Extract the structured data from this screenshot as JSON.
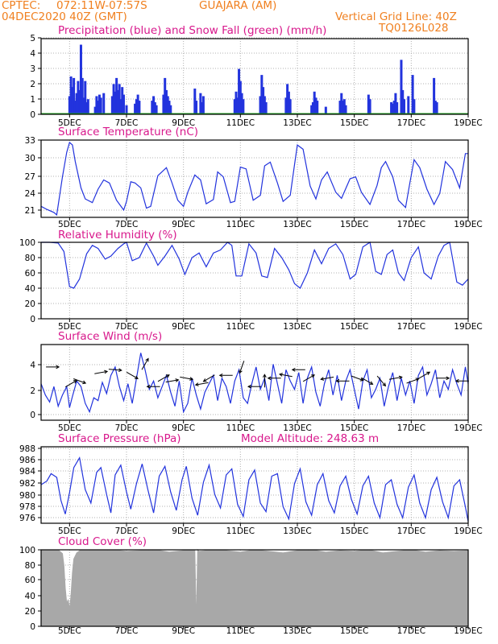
{
  "header": {
    "source": "CPTEC:",
    "coords": "072:11W-07:57S",
    "station": "GUAJARA (AM)",
    "run_date": "04DEC2020 40Z (GMT)",
    "grid_note": "Vertical Grid Line: 40Z",
    "code": "TQ0126L028"
  },
  "colors": {
    "header": "#f08020",
    "title": "#d8188c",
    "line": "#2233dd",
    "snow": "#22aa22",
    "cloud": "#a8a8a8",
    "grid": "#b0b0b0"
  },
  "x_ticks": [
    "5DEC",
    "7DEC",
    "9DEC",
    "11DEC",
    "13DEC",
    "15DEC",
    "17DEC",
    "19DEC"
  ],
  "chart_data": [
    {
      "id": "precip",
      "type": "bar",
      "title": "Precipitation (blue) and Snow Fall (green) (mm/h)",
      "ylim": [
        0,
        5
      ],
      "yticks": [
        "0",
        "1",
        "2",
        "3",
        "4",
        "5"
      ],
      "x_range_days": [
        4.0,
        19.0
      ],
      "points": [
        [
          5.0,
          1.2
        ],
        [
          5.05,
          2.5
        ],
        [
          5.1,
          1.8
        ],
        [
          5.15,
          2.4
        ],
        [
          5.2,
          0.9
        ],
        [
          5.25,
          1.4
        ],
        [
          5.3,
          2.2
        ],
        [
          5.35,
          1.6
        ],
        [
          5.4,
          4.6
        ],
        [
          5.45,
          2.4
        ],
        [
          5.5,
          1.1
        ],
        [
          5.55,
          2.2
        ],
        [
          5.6,
          0.8
        ],
        [
          5.65,
          1.0
        ],
        [
          5.9,
          0.5
        ],
        [
          5.95,
          1.2
        ],
        [
          6.0,
          0.9
        ],
        [
          6.05,
          1.3
        ],
        [
          6.1,
          1.1
        ],
        [
          6.2,
          1.4
        ],
        [
          6.5,
          1.2
        ],
        [
          6.55,
          2.0
        ],
        [
          6.6,
          1.5
        ],
        [
          6.65,
          2.4
        ],
        [
          6.7,
          1.6
        ],
        [
          6.75,
          2.0
        ],
        [
          6.8,
          1.0
        ],
        [
          6.85,
          1.8
        ],
        [
          6.9,
          1.3
        ],
        [
          7.0,
          0.6
        ],
        [
          7.3,
          0.7
        ],
        [
          7.35,
          1.0
        ],
        [
          7.4,
          1.3
        ],
        [
          7.45,
          0.9
        ],
        [
          7.9,
          0.9
        ],
        [
          7.95,
          1.2
        ],
        [
          8.0,
          0.8
        ],
        [
          8.05,
          0.6
        ],
        [
          8.3,
          1.3
        ],
        [
          8.35,
          2.4
        ],
        [
          8.4,
          1.6
        ],
        [
          8.45,
          1.2
        ],
        [
          8.5,
          0.9
        ],
        [
          8.55,
          0.6
        ],
        [
          9.4,
          1.7
        ],
        [
          9.45,
          0.9
        ],
        [
          9.6,
          1.4
        ],
        [
          9.65,
          0.8
        ],
        [
          9.7,
          1.2
        ],
        [
          10.8,
          1.0
        ],
        [
          10.85,
          1.5
        ],
        [
          10.9,
          1.1
        ],
        [
          10.95,
          3.0
        ],
        [
          11.0,
          2.2
        ],
        [
          11.05,
          1.4
        ],
        [
          11.1,
          1.0
        ],
        [
          11.7,
          1.2
        ],
        [
          11.75,
          2.6
        ],
        [
          11.8,
          1.8
        ],
        [
          11.85,
          1.2
        ],
        [
          11.9,
          0.8
        ],
        [
          12.6,
          1.1
        ],
        [
          12.65,
          2.0
        ],
        [
          12.7,
          1.5
        ],
        [
          12.75,
          1.0
        ],
        [
          13.5,
          0.6
        ],
        [
          13.55,
          0.8
        ],
        [
          13.6,
          1.5
        ],
        [
          13.65,
          1.1
        ],
        [
          13.7,
          0.9
        ],
        [
          14.0,
          0.5
        ],
        [
          14.5,
          0.9
        ],
        [
          14.55,
          1.4
        ],
        [
          14.6,
          0.9
        ],
        [
          14.65,
          1.0
        ],
        [
          14.7,
          0.6
        ],
        [
          15.5,
          1.3
        ],
        [
          15.55,
          1.0
        ],
        [
          16.3,
          0.8
        ],
        [
          16.35,
          0.7
        ],
        [
          16.4,
          0.9
        ],
        [
          16.45,
          1.4
        ],
        [
          16.5,
          0.8
        ],
        [
          16.65,
          3.6
        ],
        [
          16.7,
          1.6
        ],
        [
          16.75,
          1.0
        ],
        [
          16.9,
          1.2
        ],
        [
          17.05,
          2.6
        ],
        [
          17.1,
          1.0
        ],
        [
          17.8,
          2.4
        ],
        [
          17.85,
          0.9
        ],
        [
          17.9,
          0.8
        ]
      ],
      "snow": 0
    },
    {
      "id": "temperature",
      "type": "line",
      "title": "Surface Temperature (nC)",
      "ylim": [
        20.4,
        33
      ],
      "yticks": [
        "21",
        "24",
        "27",
        "30",
        "33"
      ],
      "x_range_days": [
        4.0,
        19.0
      ],
      "x": [
        4.0,
        4.2,
        4.45,
        4.55,
        4.75,
        4.9,
        5.0,
        5.1,
        5.2,
        5.4,
        5.55,
        5.8,
        6.0,
        6.2,
        6.4,
        6.65,
        6.9,
        7.0,
        7.15,
        7.3,
        7.5,
        7.7,
        7.85,
        8.1,
        8.4,
        8.6,
        8.8,
        9.0,
        9.15,
        9.4,
        9.6,
        9.8,
        10.05,
        10.2,
        10.4,
        10.65,
        10.8,
        11.0,
        11.2,
        11.45,
        11.7,
        11.85,
        12.05,
        12.3,
        12.5,
        12.75,
        12.9,
        13.0,
        13.2,
        13.45,
        13.65,
        13.85,
        14.05,
        14.35,
        14.55,
        14.85,
        15.05,
        15.25,
        15.55,
        15.8,
        15.95,
        16.1,
        16.35,
        16.55,
        16.8,
        16.95,
        17.1,
        17.3,
        17.55,
        17.8,
        18.0,
        18.2,
        18.45,
        18.7,
        18.9,
        19.0
      ],
      "y": [
        22.2,
        21.7,
        21.2,
        20.8,
        27.0,
        31.0,
        32.6,
        32.2,
        29.5,
        25.2,
        23.4,
        22.8,
        25.0,
        26.5,
        26.0,
        23.2,
        21.6,
        23.0,
        26.2,
        26.0,
        25.2,
        21.9,
        22.2,
        27.2,
        28.5,
        26.0,
        23.2,
        22.2,
        24.5,
        27.3,
        26.5,
        22.6,
        23.3,
        27.8,
        27.0,
        22.8,
        23.0,
        28.6,
        28.3,
        23.2,
        24.0,
        28.8,
        29.4,
        26.0,
        23.0,
        24.0,
        29.0,
        32.2,
        31.5,
        25.5,
        23.4,
        26.5,
        27.8,
        24.5,
        23.5,
        26.7,
        27.0,
        24.5,
        22.5,
        25.6,
        28.5,
        29.5,
        27.0,
        23.2,
        22.0,
        26.0,
        29.8,
        28.5,
        25.0,
        22.5,
        24.3,
        29.5,
        28.2,
        25.2,
        30.8,
        30.8
      ]
    },
    {
      "id": "humidity",
      "type": "line",
      "title": "Relative Humidity (%)",
      "ylim": [
        0,
        100
      ],
      "yticks": [
        "0",
        "20",
        "40",
        "60",
        "80",
        "100"
      ],
      "x_range_days": [
        4.0,
        19.0
      ],
      "x": [
        4.0,
        4.3,
        4.6,
        4.8,
        5.0,
        5.15,
        5.35,
        5.6,
        5.8,
        6.0,
        6.25,
        6.45,
        6.7,
        6.9,
        7.0,
        7.2,
        7.45,
        7.7,
        7.95,
        8.1,
        8.35,
        8.6,
        8.85,
        9.05,
        9.3,
        9.55,
        9.8,
        10.05,
        10.3,
        10.55,
        10.7,
        10.85,
        11.05,
        11.3,
        11.55,
        11.75,
        11.95,
        12.2,
        12.45,
        12.7,
        12.9,
        13.1,
        13.35,
        13.6,
        13.85,
        14.1,
        14.35,
        14.6,
        14.85,
        15.05,
        15.3,
        15.55,
        15.75,
        15.95,
        16.15,
        16.35,
        16.55,
        16.75,
        17.0,
        17.25,
        17.45,
        17.7,
        17.95,
        18.15,
        18.35,
        18.6,
        18.8,
        19.0
      ],
      "y": [
        100,
        100,
        99,
        88,
        42,
        40,
        52,
        85,
        96,
        92,
        78,
        82,
        92,
        98,
        100,
        76,
        80,
        99,
        82,
        70,
        82,
        96,
        78,
        58,
        80,
        86,
        68,
        86,
        90,
        100,
        96,
        56,
        56,
        98,
        86,
        56,
        54,
        92,
        80,
        64,
        46,
        40,
        60,
        90,
        72,
        92,
        98,
        84,
        52,
        58,
        94,
        100,
        62,
        58,
        84,
        90,
        60,
        50,
        80,
        94,
        60,
        52,
        82,
        96,
        100,
        48,
        44,
        52
      ]
    },
    {
      "id": "wind",
      "type": "line",
      "title": "Surface Wind (m/s)",
      "ylim": [
        -0.4,
        5
      ],
      "yticks": [
        "0",
        "2",
        "4"
      ],
      "x_range_days": [
        4.0,
        19.0
      ],
      "x": [
        4.0,
        4.15,
        4.3,
        4.45,
        4.6,
        4.75,
        4.9,
        5.0,
        5.1,
        5.25,
        5.4,
        5.55,
        5.7,
        5.85,
        6.0,
        6.15,
        6.3,
        6.45,
        6.6,
        6.75,
        6.9,
        7.05,
        7.2,
        7.35,
        7.5,
        7.65,
        7.8,
        7.95,
        8.1,
        8.25,
        8.4,
        8.55,
        8.7,
        8.85,
        9.0,
        9.15,
        9.3,
        9.45,
        9.6,
        9.75,
        9.9,
        10.05,
        10.2,
        10.35,
        10.5,
        10.65,
        10.8,
        10.95,
        11.1,
        11.25,
        11.4,
        11.55,
        11.7,
        11.85,
        12.0,
        12.15,
        12.3,
        12.45,
        12.6,
        12.75,
        12.9,
        13.05,
        13.2,
        13.35,
        13.5,
        13.65,
        13.8,
        13.95,
        14.1,
        14.25,
        14.4,
        14.55,
        14.7,
        14.85,
        15.0,
        15.15,
        15.3,
        15.45,
        15.6,
        15.75,
        15.9,
        16.05,
        16.2,
        16.35,
        16.5,
        16.65,
        16.8,
        16.95,
        17.1,
        17.25,
        17.4,
        17.55,
        17.7,
        17.85,
        18.0,
        18.15,
        18.3,
        18.45,
        18.6,
        18.75,
        18.9,
        19.0
      ],
      "y": [
        2.2,
        1.4,
        0.9,
        2.0,
        0.6,
        1.4,
        2.0,
        0.5,
        1.3,
        2.4,
        2.0,
        0.8,
        0.2,
        1.2,
        1.0,
        2.3,
        1.5,
        2.8,
        3.4,
        2.0,
        1.0,
        2.2,
        0.8,
        2.6,
        4.4,
        3.2,
        1.8,
        2.4,
        1.2,
        2.0,
        2.8,
        1.6,
        0.6,
        2.4,
        0.2,
        0.8,
        2.6,
        1.4,
        0.4,
        1.6,
        2.2,
        2.8,
        1.0,
        2.6,
        2.0,
        0.8,
        2.4,
        3.2,
        1.2,
        0.8,
        2.2,
        3.4,
        1.8,
        2.6,
        1.0,
        3.6,
        2.2,
        0.8,
        3.2,
        2.4,
        1.8,
        3.0,
        0.8,
        2.6,
        3.4,
        1.6,
        0.6,
        2.2,
        3.2,
        1.4,
        2.8,
        1.0,
        2.4,
        3.2,
        1.8,
        0.4,
        2.4,
        3.2,
        1.2,
        1.8,
        2.6,
        0.6,
        2.0,
        3.0,
        1.0,
        2.6,
        1.4,
        2.4,
        0.8,
        2.8,
        3.4,
        1.4,
        2.2,
        3.2,
        1.2,
        2.4,
        1.8,
        3.2,
        2.2,
        1.4,
        3.4,
        2.2
      ]
    },
    {
      "id": "pressure",
      "type": "line",
      "title": "Surface Pressure (hPa)",
      "subtitle": "Model Altitude: 248.63 m",
      "ylim": [
        975.5,
        988
      ],
      "yticks": [
        "976",
        "978",
        "980",
        "982",
        "984",
        "986",
        "988"
      ],
      "x_range_days": [
        4.0,
        19.0
      ],
      "x": [
        4.0,
        4.2,
        4.35,
        4.55,
        4.7,
        4.85,
        5.0,
        5.15,
        5.35,
        5.55,
        5.75,
        5.95,
        6.1,
        6.3,
        6.45,
        6.6,
        6.8,
        7.0,
        7.15,
        7.35,
        7.55,
        7.75,
        7.95,
        8.15,
        8.35,
        8.55,
        8.75,
        8.95,
        9.1,
        9.3,
        9.5,
        9.7,
        9.9,
        10.1,
        10.3,
        10.5,
        10.7,
        10.9,
        11.1,
        11.3,
        11.5,
        11.7,
        11.9,
        12.1,
        12.3,
        12.5,
        12.7,
        12.9,
        13.1,
        13.3,
        13.5,
        13.7,
        13.9,
        14.1,
        14.3,
        14.5,
        14.7,
        14.9,
        15.1,
        15.3,
        15.5,
        15.7,
        15.9,
        16.1,
        16.3,
        16.5,
        16.7,
        16.9,
        17.1,
        17.3,
        17.5,
        17.7,
        17.9,
        18.1,
        18.3,
        18.5,
        18.7,
        18.9,
        19.0
      ],
      "y": [
        981.8,
        982.4,
        983.6,
        983.0,
        979.2,
        977.0,
        980.5,
        984.6,
        986.2,
        981.0,
        978.8,
        983.8,
        984.6,
        980.2,
        977.2,
        983.4,
        985.0,
        980.6,
        977.8,
        982.0,
        985.2,
        981.0,
        977.2,
        983.2,
        984.8,
        980.6,
        977.6,
        982.6,
        984.8,
        979.6,
        976.8,
        982.2,
        985.0,
        980.2,
        978.0,
        983.4,
        984.4,
        978.6,
        976.6,
        982.6,
        984.2,
        978.8,
        977.4,
        983.2,
        983.6,
        978.2,
        976.2,
        982.0,
        984.4,
        979.0,
        976.8,
        981.8,
        983.6,
        979.2,
        977.2,
        981.6,
        983.2,
        979.4,
        977.0,
        981.6,
        983.2,
        978.8,
        976.4,
        981.8,
        982.6,
        978.6,
        976.4,
        981.4,
        983.4,
        978.8,
        976.4,
        981.0,
        983.0,
        979.0,
        976.4,
        981.6,
        982.6,
        978.2,
        975.8
      ]
    },
    {
      "id": "cloud",
      "type": "area",
      "title": "Cloud Cover (%)",
      "ylim": [
        0,
        100
      ],
      "yticks": [
        "0",
        "20",
        "40",
        "60",
        "80",
        "100"
      ],
      "x_range_days": [
        4.0,
        19.0
      ],
      "x": [
        4.0,
        4.6,
        4.75,
        4.8,
        4.85,
        4.9,
        4.95,
        5.0,
        5.05,
        5.1,
        5.15,
        5.25,
        5.4,
        5.6,
        6.0,
        6.5,
        7.0,
        7.5,
        8.0,
        8.5,
        9.0,
        9.4,
        9.45,
        9.5,
        9.55,
        10.0,
        10.5,
        11.0,
        11.5,
        12.0,
        12.5,
        13.0,
        13.5,
        14.0,
        14.5,
        15.0,
        15.5,
        16.0,
        16.5,
        17.0,
        17.5,
        18.0,
        18.5,
        19.0
      ],
      "y": [
        100,
        100,
        95,
        80,
        50,
        30,
        35,
        22,
        40,
        70,
        88,
        96,
        100,
        100,
        99,
        100,
        98,
        99,
        100,
        97,
        99,
        100,
        0,
        100,
        98,
        100,
        99,
        97,
        100,
        98,
        96,
        99,
        100,
        97,
        99,
        98,
        100,
        96,
        98,
        100,
        97,
        99,
        98,
        99
      ]
    }
  ],
  "wind_arrows": [
    {
      "day": 4.4,
      "speed": 3.4,
      "dir_deg": 90
    },
    {
      "day": 5.05,
      "speed": 2.2,
      "dir_deg": 60
    },
    {
      "day": 5.35,
      "speed": 2.4,
      "dir_deg": 110
    },
    {
      "day": 6.1,
      "speed": 3.0,
      "dir_deg": 80
    },
    {
      "day": 6.6,
      "speed": 3.2,
      "dir_deg": 95
    },
    {
      "day": 7.2,
      "speed": 2.8,
      "dir_deg": 120
    },
    {
      "day": 7.65,
      "speed": 3.6,
      "dir_deg": 30
    },
    {
      "day": 7.95,
      "speed": 2.0,
      "dir_deg": 270
    },
    {
      "day": 8.3,
      "speed": 2.6,
      "dir_deg": 60
    },
    {
      "day": 8.6,
      "speed": 2.4,
      "dir_deg": 80
    },
    {
      "day": 9.1,
      "speed": 2.6,
      "dir_deg": 100
    },
    {
      "day": 9.65,
      "speed": 2.2,
      "dir_deg": 260
    },
    {
      "day": 9.9,
      "speed": 2.6,
      "dir_deg": 240
    },
    {
      "day": 10.5,
      "speed": 2.8,
      "dir_deg": 270
    },
    {
      "day": 11.05,
      "speed": 3.4,
      "dir_deg": 200
    },
    {
      "day": 11.5,
      "speed": 2.0,
      "dir_deg": 270
    },
    {
      "day": 11.85,
      "speed": 2.4,
      "dir_deg": 0
    },
    {
      "day": 12.2,
      "speed": 2.6,
      "dir_deg": 270
    },
    {
      "day": 12.6,
      "speed": 2.8,
      "dir_deg": 280
    },
    {
      "day": 13.05,
      "speed": 3.2,
      "dir_deg": 270
    },
    {
      "day": 13.4,
      "speed": 2.6,
      "dir_deg": 60
    },
    {
      "day": 14.05,
      "speed": 2.6,
      "dir_deg": 260
    },
    {
      "day": 14.6,
      "speed": 2.4,
      "dir_deg": 270
    },
    {
      "day": 15.1,
      "speed": 2.6,
      "dir_deg": 110
    },
    {
      "day": 15.45,
      "speed": 2.4,
      "dir_deg": 120
    },
    {
      "day": 15.95,
      "speed": 2.4,
      "dir_deg": 140
    },
    {
      "day": 16.45,
      "speed": 2.6,
      "dir_deg": 80
    },
    {
      "day": 17.05,
      "speed": 2.4,
      "dir_deg": 70
    },
    {
      "day": 17.45,
      "speed": 2.8,
      "dir_deg": 60
    },
    {
      "day": 18.1,
      "speed": 2.6,
      "dir_deg": 90
    },
    {
      "day": 18.8,
      "speed": 2.4,
      "dir_deg": 270
    }
  ]
}
